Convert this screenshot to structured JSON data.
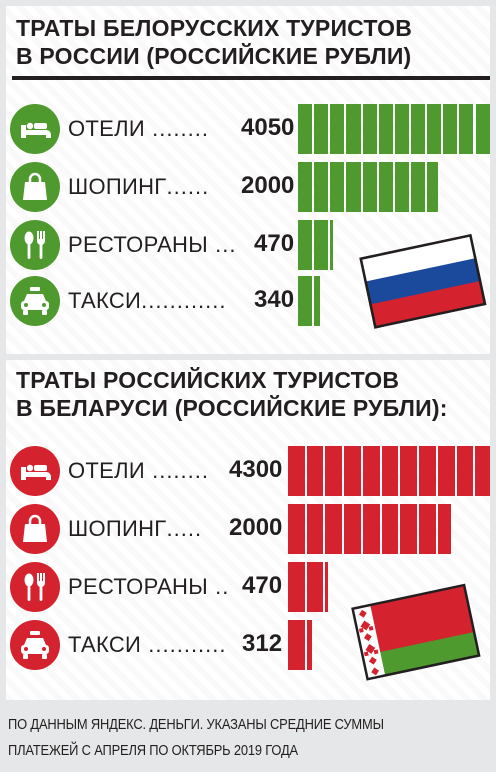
{
  "colors": {
    "belarus_tourists": "#4e9a2e",
    "russian_tourists": "#d4232f",
    "bar_stroke": "#ffffff",
    "text": "#231f20",
    "background": "#e6e7e8"
  },
  "chart_data": [
    {
      "type": "bar",
      "orientation": "horizontal",
      "title": "ТРАТЫ БЕЛОРУССКИХ ТУРИСТОВ\nВ РОССИИ (РОССИЙСКИЕ РУБЛИ)",
      "categories": [
        "ОТЕЛИ",
        "ШОПИНГ",
        "РЕСТОРАНЫ",
        "ТАКСИ"
      ],
      "dot_leaders": [
        " ........ ",
        "...... ",
        " ... ",
        "............ "
      ],
      "values": [
        4050,
        2000,
        470,
        340
      ],
      "value_labels": [
        "4050",
        "2000",
        "470",
        "340"
      ],
      "icons": [
        "bed-icon",
        "shopping-bag-icon",
        "fork-spoon-icon",
        "taxi-icon"
      ],
      "flag": "russia-flag"
    },
    {
      "type": "bar",
      "orientation": "horizontal",
      "title": "ТРАТЫ РОССИЙСКИХ ТУРИСТОВ\nВ БЕЛАРУСИ (РОССИЙСКИЕ РУБЛИ):",
      "categories": [
        "ОТЕЛИ",
        "ШОПИНГ",
        "РЕСТОРАНЫ",
        "ТАКСИ"
      ],
      "dot_leaders": [
        " ........",
        ".....",
        " ..",
        " ..........."
      ],
      "values": [
        4300,
        2000,
        470,
        312
      ],
      "value_labels": [
        "4300",
        "2000",
        "470",
        "312"
      ],
      "icons": [
        "bed-icon",
        "shopping-bag-icon",
        "fork-spoon-icon",
        "taxi-icon"
      ],
      "flag": "belarus-flag"
    }
  ],
  "footer": {
    "note": "ПО ДАННЫМ ЯНДЕКС. ДЕНЬГИ. УКАЗАНЫ СРЕДНИЕ СУММЫ\nПЛАТЕЖЕЙ С АПРЕЛЯ ПО ОКТЯБРЬ 2019 ГОДА"
  }
}
